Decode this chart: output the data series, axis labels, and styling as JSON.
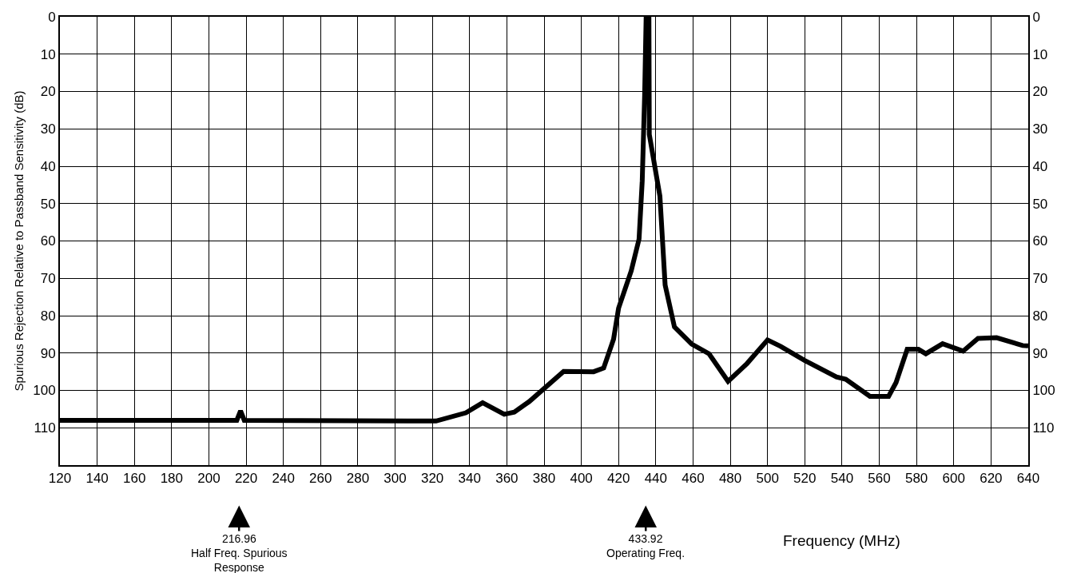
{
  "chart_data": {
    "type": "line",
    "xlabel": "Frequency (MHz)",
    "ylabel": "Spurious Rejection Relative to Passband Sensitivity (dB)",
    "x": [
      120,
      215,
      217,
      219,
      322,
      338,
      347,
      358.6,
      364,
      372,
      390.5,
      406.6,
      412,
      417.3,
      420,
      426.8,
      431,
      432.7,
      434,
      434.8,
      436.3,
      436.5,
      442.2,
      445,
      450,
      459.3,
      468.6,
      478.8,
      489,
      500,
      507,
      520,
      537,
      542,
      555,
      565,
      569,
      575,
      581,
      585,
      594,
      605,
      613,
      623,
      637,
      640
    ],
    "series": [
      {
        "color": "#000000",
        "values": [
          108,
          108,
          105.5,
          108,
          108.2,
          106,
          103.3,
          106.4,
          105.8,
          103,
          94.9,
          95,
          94,
          86.3,
          78,
          68,
          59.5,
          44,
          21,
          0,
          0,
          31.5,
          48,
          71.8,
          83,
          87.6,
          90.2,
          97.6,
          92.8,
          86.5,
          88.2,
          92,
          96.4,
          97,
          101.6,
          101.6,
          97.9,
          89,
          89,
          90.2,
          87.5,
          89.5,
          86.1,
          85.9,
          88,
          88.1
        ]
      }
    ],
    "xlim": [
      120,
      640
    ],
    "xticks": [
      120,
      140,
      160,
      180,
      200,
      220,
      240,
      260,
      280,
      300,
      320,
      340,
      360,
      380,
      400,
      420,
      440,
      460,
      480,
      500,
      520,
      540,
      560,
      580,
      600,
      620,
      640
    ],
    "ylim": [
      120,
      0
    ],
    "yticks": [
      0,
      10,
      20,
      30,
      40,
      50,
      60,
      70,
      80,
      90,
      100,
      110
    ],
    "y2lim": [
      120,
      0
    ],
    "y2ticks": [
      0,
      10,
      20,
      30,
      40,
      50,
      60,
      70,
      80,
      90,
      100,
      110
    ],
    "grid": true,
    "marker": "none",
    "line_style": "solid",
    "annotations": [
      "216.96\nHalf Freq. Spurious\nResponse",
      "433.92\nOperating Freq."
    ]
  }
}
